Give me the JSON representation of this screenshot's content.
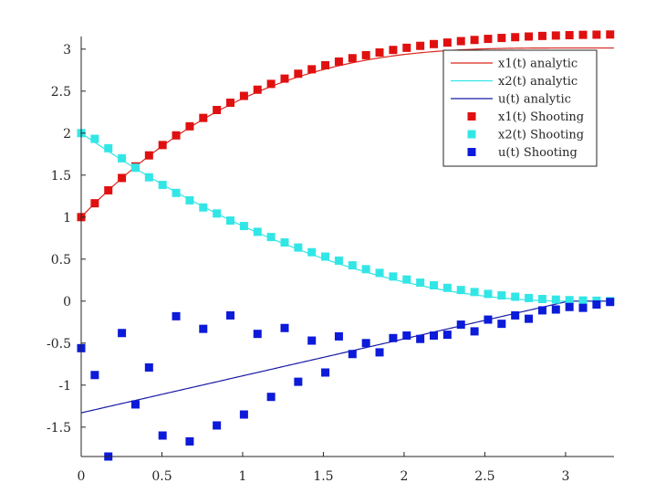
{
  "chart_data": {
    "type": "line",
    "title": "",
    "xlabel": "",
    "ylabel": "",
    "xlim": [
      0,
      3.3
    ],
    "ylim": [
      -1.85,
      3.15
    ],
    "x_ticks": [
      0,
      0.5,
      1,
      1.5,
      2,
      2.5,
      3
    ],
    "x_tick_labels": [
      "0",
      "0.5",
      "1",
      "1.5",
      "2",
      "2.5",
      "3"
    ],
    "y_ticks": [
      -1.5,
      -1,
      -0.5,
      0,
      0.5,
      1,
      1.5,
      2,
      2.5,
      3
    ],
    "y_tick_labels": [
      "-1.5",
      "-1",
      "-0.5",
      "0",
      "0.5",
      "1",
      "1.5",
      "2",
      "2.5",
      "3"
    ],
    "grid": false,
    "legend_position": "top-right",
    "series": [
      {
        "name": "x1(t) analytic",
        "kind": "line",
        "color": "#d9261c"
      },
      {
        "name": "x2(t) analytic",
        "kind": "line",
        "color": "#33e6e6"
      },
      {
        "name": "u(t) analytic",
        "kind": "line",
        "color": "#1a1aa6"
      },
      {
        "name": "x1(t) Shooting",
        "kind": "marker",
        "color": "#e01010"
      },
      {
        "name": "x2(t) Shooting",
        "kind": "marker",
        "color": "#33e6e6"
      },
      {
        "name": "u(t) Shooting",
        "kind": "marker",
        "color": "#0c1ad9"
      }
    ],
    "analytic_params": {
      "T": 3.02,
      "x1_0": 1.0,
      "x2_0": 2.0,
      "u_0": -1.33
    },
    "shooting_t": [
      0,
      0.084,
      0.168,
      0.252,
      0.336,
      0.42,
      0.504,
      0.588,
      0.672,
      0.756,
      0.84,
      0.924,
      1.008,
      1.092,
      1.176,
      1.26,
      1.344,
      1.428,
      1.512,
      1.596,
      1.68,
      1.764,
      1.848,
      1.932,
      2.016,
      2.1,
      2.184,
      2.268,
      2.352,
      2.436,
      2.52,
      2.604,
      2.688,
      2.772,
      2.856,
      2.94,
      3.024,
      3.108,
      3.192,
      3.276
    ],
    "x1_shooting": [
      1.0,
      1.165,
      1.319,
      1.466,
      1.604,
      1.735,
      1.858,
      1.973,
      2.081,
      2.181,
      2.275,
      2.362,
      2.443,
      2.517,
      2.586,
      2.649,
      2.707,
      2.76,
      2.808,
      2.852,
      2.892,
      2.928,
      2.96,
      2.99,
      3.016,
      3.039,
      3.06,
      3.078,
      3.095,
      3.109,
      3.122,
      3.133,
      3.142,
      3.15,
      3.157,
      3.162,
      3.166,
      3.17,
      3.172,
      3.174
    ],
    "x2_shooting": [
      2.0,
      1.932,
      1.82,
      1.7,
      1.588,
      1.474,
      1.383,
      1.288,
      1.2,
      1.115,
      1.043,
      0.959,
      0.894,
      0.825,
      0.763,
      0.698,
      0.638,
      0.582,
      0.53,
      0.482,
      0.426,
      0.38,
      0.336,
      0.293,
      0.257,
      0.22,
      0.188,
      0.158,
      0.132,
      0.108,
      0.086,
      0.068,
      0.052,
      0.037,
      0.025,
      0.018,
      0.012,
      0.008,
      0.005,
      0.0
    ],
    "u_shooting": [
      -0.56,
      -0.88,
      -1.85,
      -0.38,
      -1.23,
      -0.79,
      -1.6,
      -0.18,
      -1.67,
      -0.33,
      -1.48,
      -0.17,
      -1.35,
      -0.39,
      -1.14,
      -0.32,
      -0.96,
      -0.47,
      -0.85,
      -0.42,
      -0.63,
      -0.5,
      -0.61,
      -0.44,
      -0.41,
      -0.45,
      -0.41,
      -0.4,
      -0.28,
      -0.36,
      -0.22,
      -0.27,
      -0.17,
      -0.21,
      -0.11,
      -0.1,
      -0.07,
      -0.08,
      -0.04,
      -0.01
    ]
  }
}
